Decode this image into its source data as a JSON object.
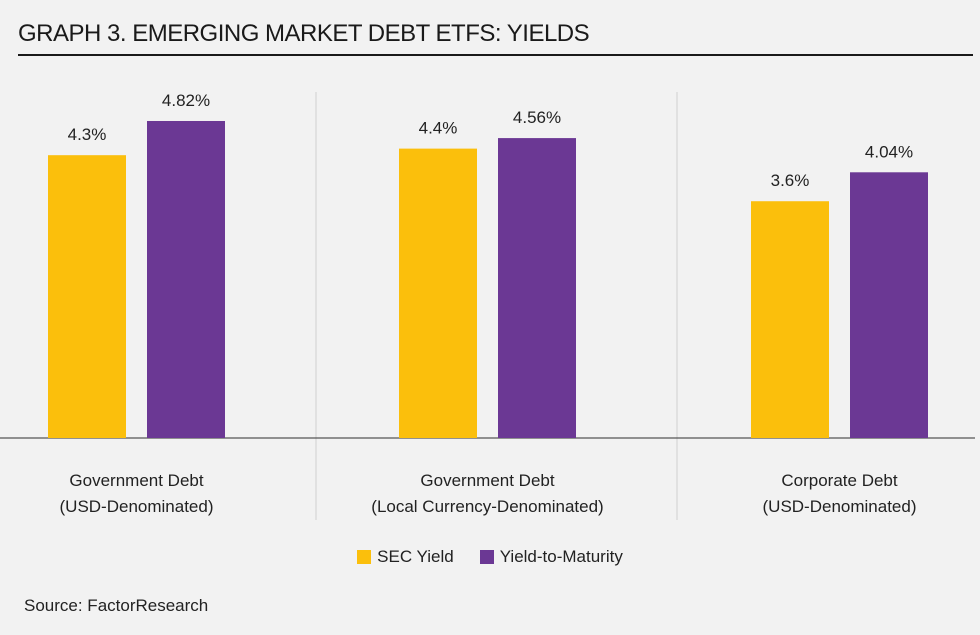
{
  "chart_data": {
    "type": "bar",
    "title": "GRAPH 3.  EMERGING MARKET DEBT ETFS: YIELDS",
    "categories": [
      [
        "Government Debt",
        "(USD-Denominated)"
      ],
      [
        "Government Debt",
        "(Local Currency-Denominated)"
      ],
      [
        "Corporate Debt",
        "(USD-Denominated)"
      ]
    ],
    "series": [
      {
        "name": "SEC Yield",
        "color": "#fbbf0c",
        "values": [
          4.3,
          4.4,
          3.6
        ],
        "labels": [
          "4.3%",
          "4.4%",
          "3.6%"
        ]
      },
      {
        "name": "Yield-to-Maturity",
        "color": "#6b3894",
        "values": [
          4.82,
          4.56,
          4.04
        ],
        "labels": [
          "4.82%",
          "4.56%",
          "4.04%"
        ]
      }
    ],
    "ylim": [
      0,
      5.2
    ],
    "xlabel": "",
    "ylabel": "",
    "grid": false,
    "legend": "bottom-center"
  },
  "source": "Source: FactorResearch"
}
